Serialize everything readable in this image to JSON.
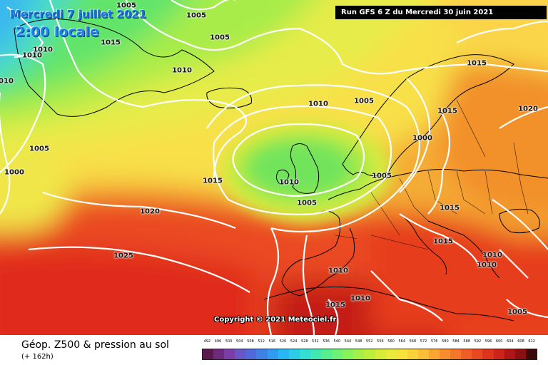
{
  "header": {
    "date_title": "Mercredi 7 juillet 2021",
    "time_title": "2:00 locale",
    "run_banner": "Run GFS 6 Z du Mercredi 30 juin 2021"
  },
  "copyright": "Copyright © 2021 Meteociel.fr",
  "footer": {
    "product_title": "Géop. Z500 & pression au sol",
    "lead_time": "(+ 162h)"
  },
  "legend": {
    "labels": [
      "492",
      "496",
      "500",
      "504",
      "508",
      "512",
      "516",
      "520",
      "524",
      "528",
      "532",
      "536",
      "540",
      "544",
      "548",
      "552",
      "556",
      "560",
      "564",
      "568",
      "572",
      "576",
      "580",
      "584",
      "588",
      "592",
      "596",
      "600",
      "604",
      "608",
      "612"
    ],
    "colors": [
      "#5a1a4f",
      "#6e2a7c",
      "#7a3ea6",
      "#6a55c4",
      "#5168d8",
      "#3f82e6",
      "#2f9cf0",
      "#28b6f4",
      "#2ccbe8",
      "#34ddd2",
      "#42e8b4",
      "#55ef92",
      "#6cf276",
      "#86f25c",
      "#a3f04a",
      "#bdee3e",
      "#d6ec38",
      "#eaea3a",
      "#f7e23c",
      "#fcd23a",
      "#fcbe36",
      "#faa632",
      "#f78e2e",
      "#f3762a",
      "#ee5e26",
      "#e84822",
      "#de341e",
      "#cc241a",
      "#b01616",
      "#8c1010",
      "#3c0a0a"
    ]
  },
  "isobar_labels": [
    "1005",
    "1005",
    "1005",
    "1015",
    "1010",
    "1010",
    "1010",
    "1010",
    "1005",
    "1015",
    "1015",
    "1020",
    "1005",
    "1010",
    "1000",
    "1000",
    "1015",
    "1005",
    "1005",
    "1020",
    "1015",
    "1015",
    "1025",
    "1010",
    "1010",
    "1010",
    "1010",
    "1015",
    "1010",
    "1005"
  ],
  "colors": {
    "contour": "#ffffff",
    "coast": "#000000",
    "banner_bg": "#000000",
    "title_blue": "#1c86e8"
  }
}
